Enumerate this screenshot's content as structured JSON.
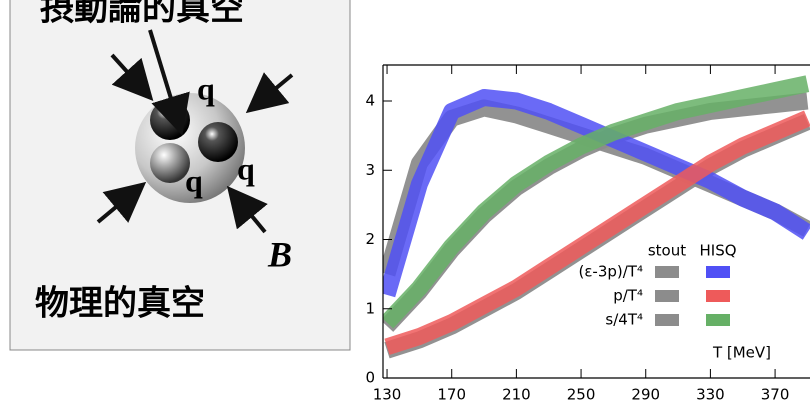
{
  "diagram": {
    "top_label": "摂動論的真空",
    "quarks": [
      "q",
      "q",
      "q"
    ],
    "field": "B",
    "bottom_label": "物理的真空"
  },
  "chart_data": {
    "type": "band",
    "x_label": "T [MeV]",
    "x": [
      130,
      150,
      170,
      190,
      210,
      230,
      250,
      270,
      290,
      310,
      330,
      350,
      370,
      390
    ],
    "xlim": [
      127.5,
      391.6
    ],
    "xticks": [
      130,
      170,
      210,
      250,
      290,
      330,
      370
    ],
    "ylim": [
      0,
      4.52
    ],
    "yticks": [
      0,
      1,
      2,
      3,
      4
    ],
    "legend_columns": [
      "stout",
      "HISQ"
    ],
    "series": [
      {
        "name": "(ε-3p)/T⁴",
        "bands": [
          {
            "color": "#8c8c8c",
            "values": [
              1.5,
              3.1,
              3.75,
              3.9,
              3.8,
              3.65,
              3.5,
              3.35,
              3.2,
              3.0,
              2.8,
              2.6,
              2.4,
              2.15
            ]
          },
          {
            "color": "#5050f5",
            "values": [
              1.2,
              2.8,
              3.85,
              4.05,
              4.0,
              3.85,
              3.65,
              3.45,
              3.25,
              3.05,
              2.85,
              2.6,
              2.4,
              2.1
            ]
          }
        ]
      },
      {
        "name": "p/T⁴",
        "bands": [
          {
            "color": "#8c8c8c",
            "values": [
              0.4,
              0.55,
              0.75,
              1.0,
              1.25,
              1.55,
              1.85,
              2.15,
              2.45,
              2.75,
              3.05,
              3.3,
              3.5,
              3.7
            ]
          },
          {
            "color": "#ee5a5a",
            "values": [
              0.45,
              0.6,
              0.8,
              1.05,
              1.3,
              1.6,
              1.9,
              2.2,
              2.5,
              2.8,
              3.1,
              3.35,
              3.55,
              3.75
            ]
          }
        ]
      },
      {
        "name": "s/4T⁴",
        "bands": [
          {
            "color": "#8c8c8c",
            "values": [
              0.75,
              1.25,
              1.85,
              2.35,
              2.75,
              3.05,
              3.3,
              3.5,
              3.65,
              3.75,
              3.85,
              3.9,
              3.95,
              4.0
            ]
          },
          {
            "color": "#66b066",
            "values": [
              0.8,
              1.3,
              1.9,
              2.4,
              2.8,
              3.1,
              3.35,
              3.55,
              3.7,
              3.85,
              3.95,
              4.05,
              4.15,
              4.25
            ]
          }
        ]
      }
    ]
  }
}
